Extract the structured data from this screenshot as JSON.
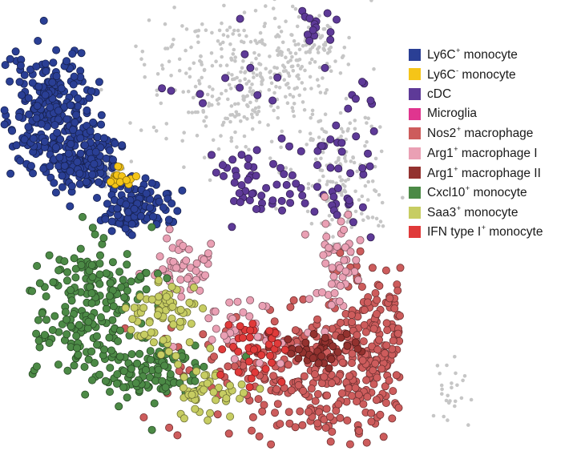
{
  "chart_data": {
    "type": "scatter",
    "title": "",
    "xlabel": "",
    "ylabel": "",
    "grid": false,
    "axes_visible": false,
    "legend_position": "top-right",
    "background_series": {
      "color": "#c6c6c6"
    },
    "series": [
      {
        "name": "Ly6C",
        "sup": "+",
        "suffix": " monocyte",
        "color": "#2a3f95"
      },
      {
        "name": "Ly6C",
        "sup": "-",
        "suffix": " monocyte",
        "color": "#f5c518"
      },
      {
        "name": "cDC",
        "sup": "",
        "suffix": "",
        "color": "#5e3a98"
      },
      {
        "name": "Microglia",
        "sup": "",
        "suffix": "",
        "color": "#e0358f"
      },
      {
        "name": "Nos2",
        "sup": "+",
        "suffix": " macrophage",
        "color": "#cd5c5c"
      },
      {
        "name": "Arg1",
        "sup": "+",
        "suffix": " macrophage I",
        "color": "#eaa0b4"
      },
      {
        "name": "Arg1",
        "sup": "+",
        "suffix": " macrophage II",
        "color": "#93322f"
      },
      {
        "name": "Cxcl10",
        "sup": "+",
        "suffix": " monocyte",
        "color": "#4c8a46"
      },
      {
        "name": "Saa3",
        "sup": "+",
        "suffix": " monocyte",
        "color": "#c7cd62"
      },
      {
        "name": "IFN type I",
        "sup": "+",
        "suffix": " monocyte",
        "color": "#e03a3a"
      }
    ]
  }
}
